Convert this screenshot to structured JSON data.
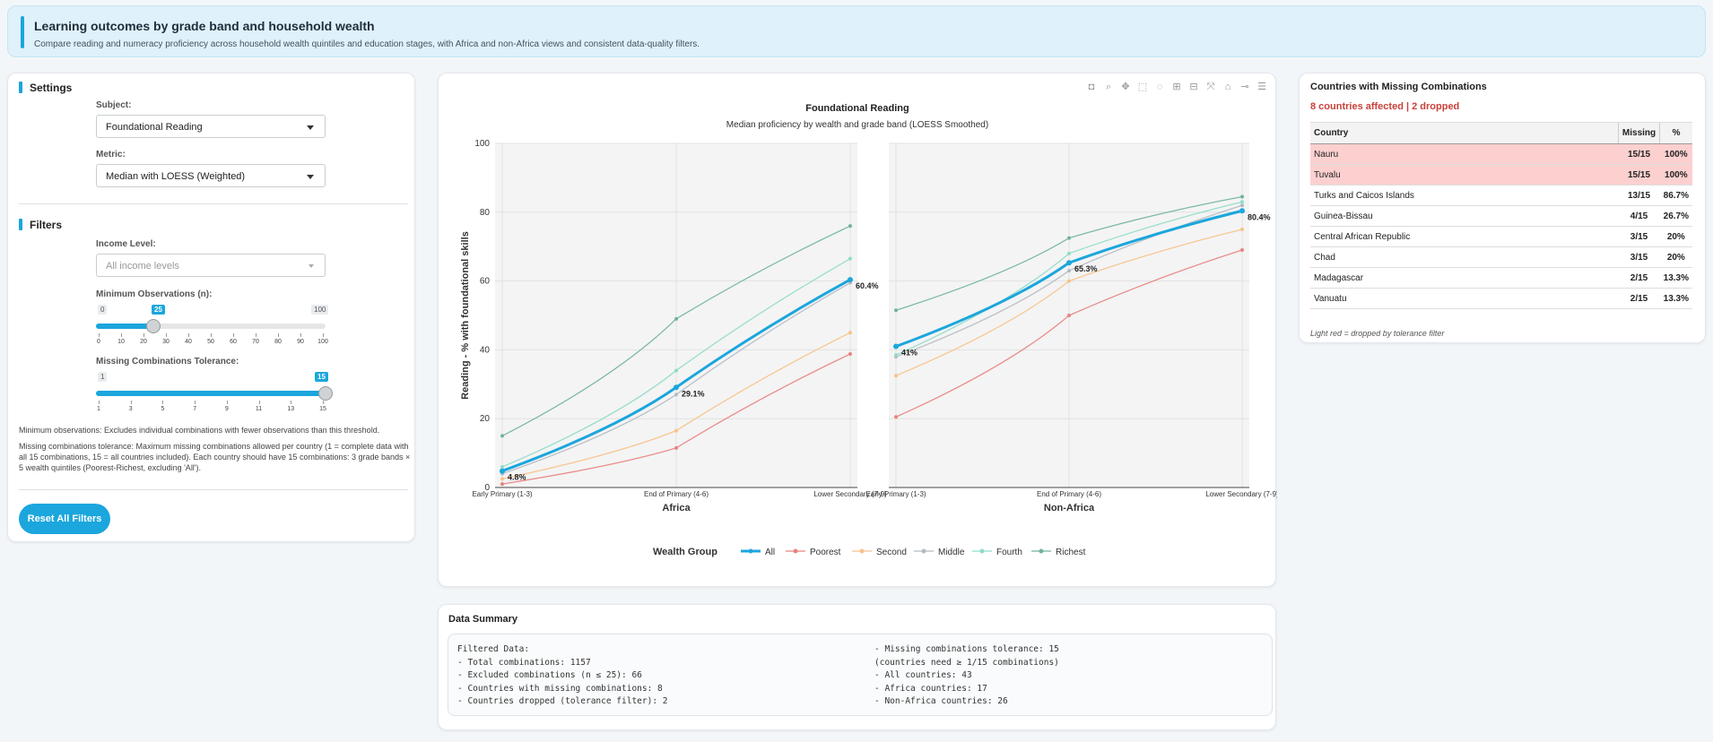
{
  "header": {
    "title": "Learning outcomes by grade band and household wealth",
    "subtitle": "Compare reading and numeracy proficiency across household wealth quintiles and education stages, with Africa and non-Africa views and consistent data-quality filters."
  },
  "settings": {
    "title": "Settings",
    "subject_label": "Subject:",
    "subject_value": "Foundational Reading",
    "metric_label": "Metric:",
    "metric_value": "Median with LOESS (Weighted)"
  },
  "filters": {
    "title": "Filters",
    "income_label": "Income Level:",
    "income_placeholder": "All income levels",
    "min_obs": {
      "label": "Minimum Observations (n):",
      "min": "0",
      "max": "100",
      "value": "25",
      "fraction": 0.25,
      "ticks": [
        "0",
        "10",
        "20",
        "30",
        "40",
        "50",
        "60",
        "70",
        "80",
        "90",
        "100"
      ]
    },
    "tolerance": {
      "label": "Missing Combinations Tolerance:",
      "min": "1",
      "max": "15",
      "value": "15",
      "fraction": 1.0,
      "ticks": [
        "1",
        "3",
        "5",
        "7",
        "9",
        "11",
        "13",
        "15"
      ]
    },
    "note1": "Minimum observations: Excludes individual combinations with fewer observations than this threshold.",
    "note2": "Missing combinations tolerance: Maximum missing combinations allowed per country (1 = complete data with all 15 combinations, 15 = all countries included). Each country should have 15 combinations: 3 grade bands × 5 wealth quintiles (Poorest-Richest, excluding 'All').",
    "reset_label": "Reset All Filters"
  },
  "modebar": [
    "camera-icon",
    "zoom-icon",
    "pan-icon",
    "box-select-icon",
    "lasso-icon",
    "zoom-in-icon",
    "zoom-out-icon",
    "autoscale-icon",
    "reset-axes-icon",
    "spike-icon",
    "compare-icon"
  ],
  "chart_data": {
    "type": "line",
    "title": "Foundational Reading",
    "subtitle": "Median proficiency by wealth and grade band (LOESS Smoothed)",
    "ylabel": "Reading - % with foundational skills",
    "ylim": [
      0,
      100
    ],
    "yticks": [
      "0",
      "20",
      "40",
      "60",
      "80",
      "100"
    ],
    "categories": [
      "Early Primary (1-3)",
      "End of Primary (4-6)",
      "Lower Secondary (7-9)"
    ],
    "legend_title": "Wealth Group",
    "legend_position": "bottom",
    "grid": true,
    "colors": {
      "All": "#1ba6dd",
      "Poorest": "#e8837f",
      "Second": "#f7c28a",
      "Middle": "#b3bac2",
      "Fourth": "#8fdcc9",
      "Richest": "#6fb39d"
    },
    "panels": [
      {
        "xlabel": "Africa",
        "series": [
          {
            "name": "All",
            "values": [
              4.8,
              29.1,
              60.4
            ],
            "labels": [
              "4.8%",
              "29.1%",
              "60.4%"
            ]
          },
          {
            "name": "Poorest",
            "values": [
              1.0,
              11.5,
              38.8
            ]
          },
          {
            "name": "Second",
            "values": [
              2.5,
              16.5,
              45.0
            ]
          },
          {
            "name": "Middle",
            "values": [
              4.0,
              27.0,
              59.5
            ]
          },
          {
            "name": "Fourth",
            "values": [
              6.0,
              34.0,
              66.5
            ]
          },
          {
            "name": "Richest",
            "values": [
              15.0,
              49.0,
              76.0
            ]
          }
        ]
      },
      {
        "xlabel": "Non-Africa",
        "series": [
          {
            "name": "All",
            "values": [
              41.0,
              65.3,
              80.4
            ],
            "labels": [
              "41%",
              "65.3%",
              "80.4%"
            ]
          },
          {
            "name": "Poorest",
            "values": [
              20.5,
              50.0,
              69.0
            ]
          },
          {
            "name": "Second",
            "values": [
              32.5,
              60.0,
              75.0
            ]
          },
          {
            "name": "Middle",
            "values": [
              38.0,
              63.0,
              82.0
            ]
          },
          {
            "name": "Fourth",
            "values": [
              38.5,
              68.0,
              83.0
            ]
          },
          {
            "name": "Richest",
            "values": [
              51.5,
              72.5,
              84.5
            ]
          }
        ]
      }
    ]
  },
  "missing": {
    "title": "Countries with Missing Combinations",
    "subtitle": "8 countries affected | 2 dropped",
    "headers": [
      "Country",
      "Missing",
      "%"
    ],
    "rows": [
      {
        "country": "Nauru",
        "missing": "15/15",
        "pct": "100%",
        "dropped": true
      },
      {
        "country": "Tuvalu",
        "missing": "15/15",
        "pct": "100%",
        "dropped": true
      },
      {
        "country": "Turks and Caicos Islands",
        "missing": "13/15",
        "pct": "86.7%",
        "dropped": false
      },
      {
        "country": "Guinea-Bissau",
        "missing": "4/15",
        "pct": "26.7%",
        "dropped": false
      },
      {
        "country": "Central African Republic",
        "missing": "3/15",
        "pct": "20%",
        "dropped": false
      },
      {
        "country": "Chad",
        "missing": "3/15",
        "pct": "20%",
        "dropped": false
      },
      {
        "country": "Madagascar",
        "missing": "2/15",
        "pct": "13.3%",
        "dropped": false
      },
      {
        "country": "Vanuatu",
        "missing": "2/15",
        "pct": "13.3%",
        "dropped": false
      }
    ],
    "footnote": "Light red = dropped by tolerance filter"
  },
  "summary": {
    "title": "Data Summary",
    "left": "Filtered Data:\n- Total combinations: 1157\n- Excluded combinations (n ≤ 25): 66\n- Countries with missing combinations: 8\n- Countries dropped (tolerance filter): 2",
    "right": "- Missing combinations tolerance: 15\n(countries need ≥ 1/15 combinations)\n- All countries: 43\n- Africa countries: 17\n- Non-Africa countries: 26"
  }
}
